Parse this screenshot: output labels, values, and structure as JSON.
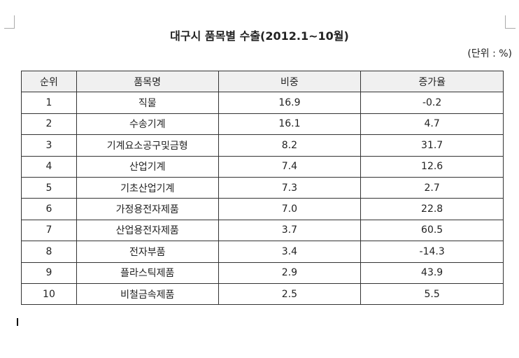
{
  "document": {
    "title": "대구시 품목별 수출(2012.1~10월)",
    "unit": "(단위 : %)",
    "table": {
      "header": [
        "순위",
        "품목명",
        "비중",
        "증가율"
      ],
      "rows": [
        [
          "1",
          "직물",
          "16.9",
          "-0.2"
        ],
        [
          "2",
          "수송기계",
          "16.1",
          "4.7"
        ],
        [
          "3",
          "기계요소공구및금형",
          "8.2",
          "31.7"
        ],
        [
          "4",
          "산업기계",
          "7.4",
          "12.6"
        ],
        [
          "5",
          "기초산업기계",
          "7.3",
          "2.7"
        ],
        [
          "6",
          "가정용전자제품",
          "7.0",
          "22.8"
        ],
        [
          "7",
          "산업용전자제품",
          "3.7",
          "60.5"
        ],
        [
          "8",
          "전자부품",
          "3.4",
          "-14.3"
        ],
        [
          "9",
          "플라스틱제품",
          "2.9",
          "43.9"
        ],
        [
          "10",
          "비철금속제품",
          "2.5",
          "5.5"
        ]
      ]
    }
  }
}
